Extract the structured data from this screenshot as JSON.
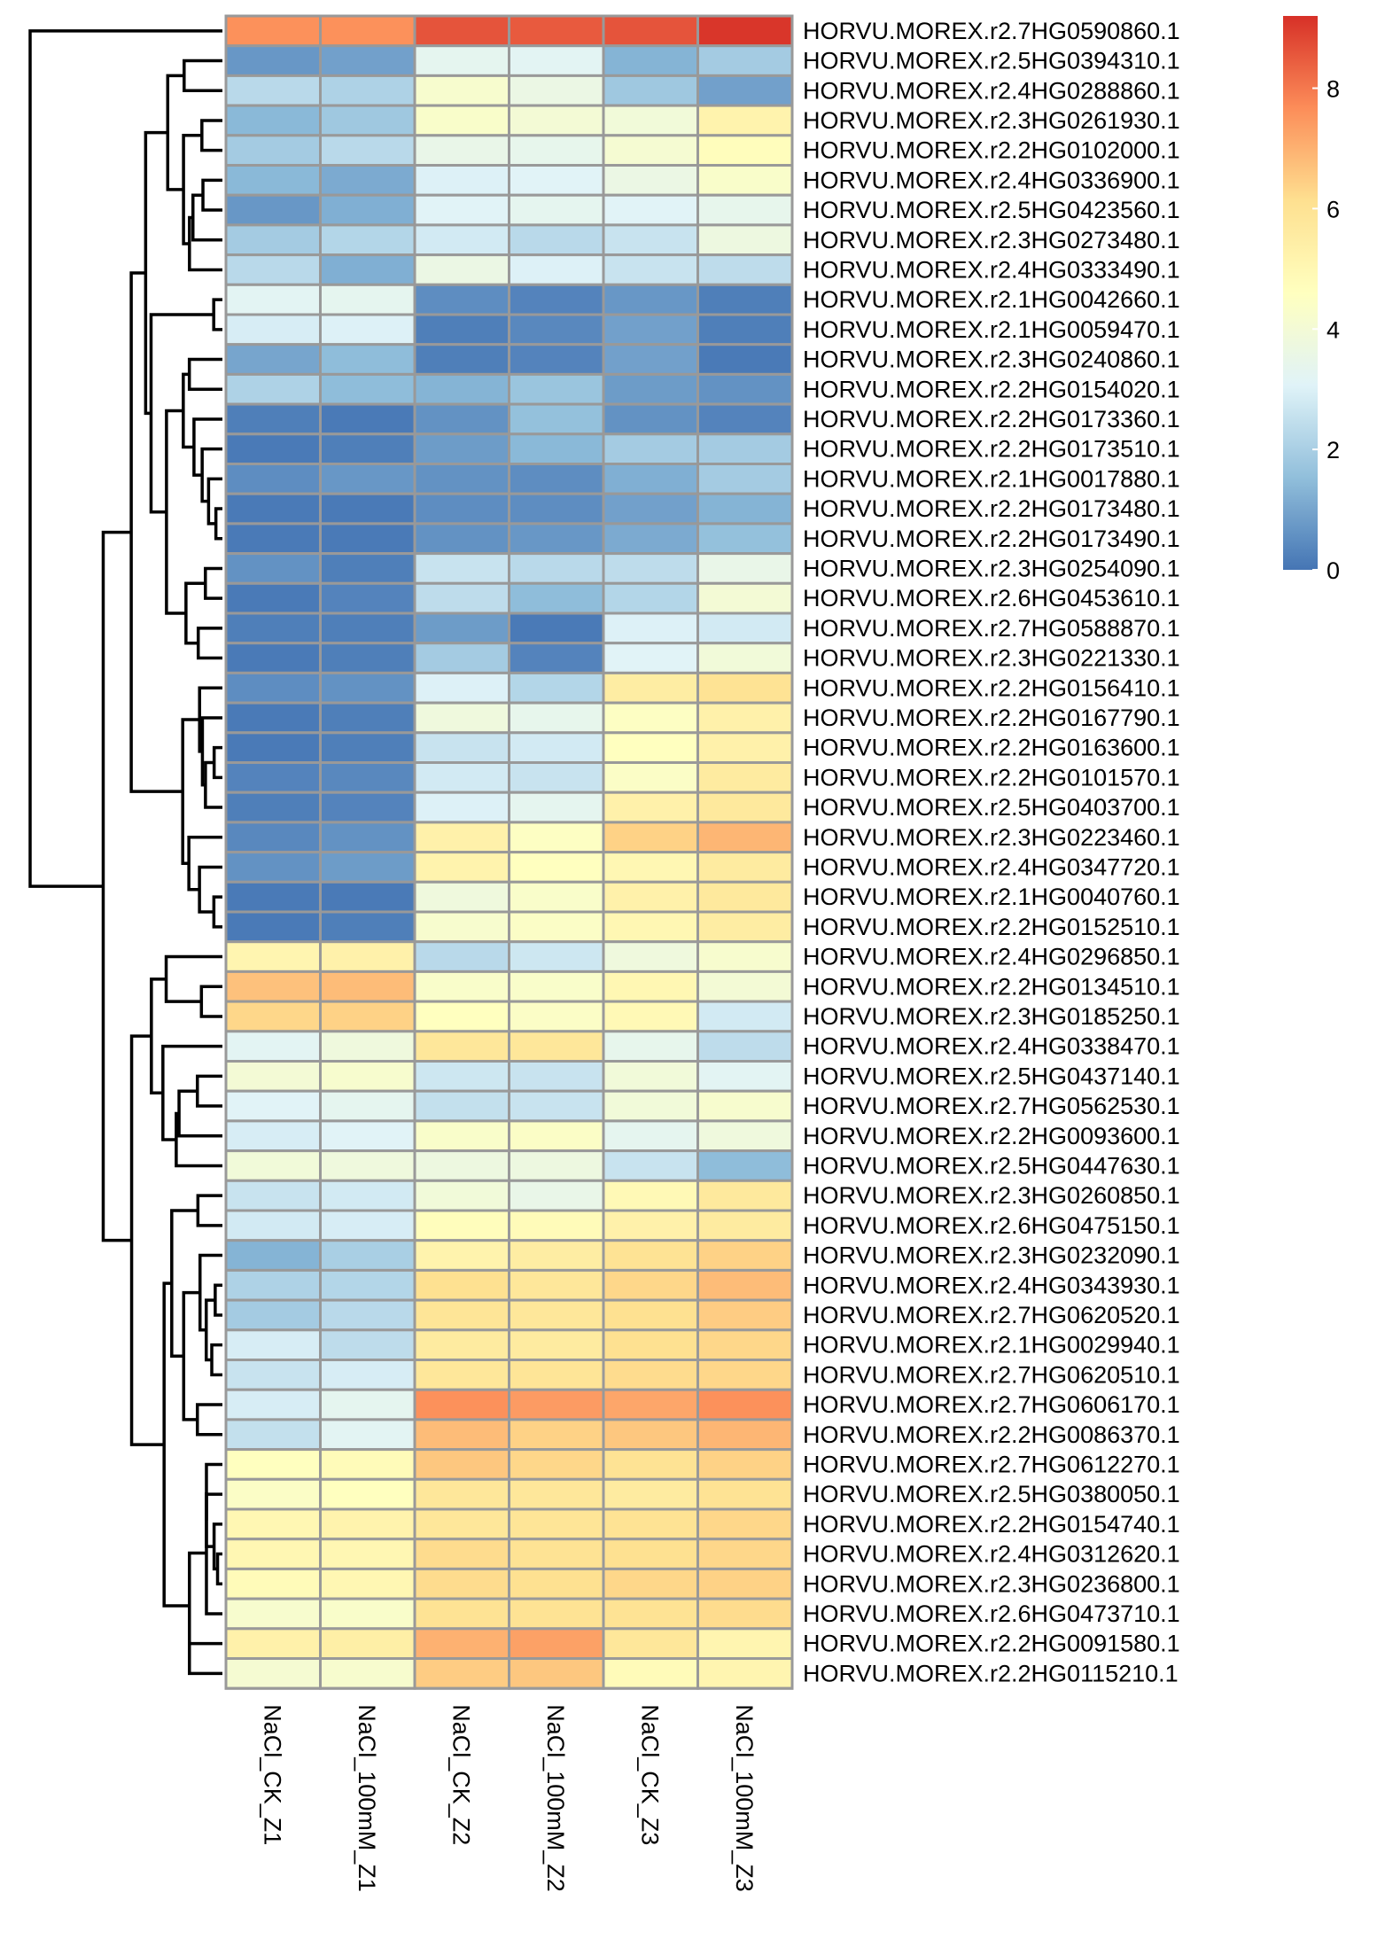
{
  "chart_data": {
    "type": "heatmap",
    "columns": [
      "NaCl_CK_Z1",
      "NaCl_100mM_Z1",
      "NaCl_CK_Z2",
      "NaCl_100mM_Z2",
      "NaCl_CK_Z3",
      "NaCl_100mM_Z3"
    ],
    "rows": [
      "HORVU.MOREX.r2.7HG0590860.1",
      "HORVU.MOREX.r2.5HG0394310.1",
      "HORVU.MOREX.r2.4HG0288860.1",
      "HORVU.MOREX.r2.3HG0261930.1",
      "HORVU.MOREX.r2.2HG0102000.1",
      "HORVU.MOREX.r2.4HG0336900.1",
      "HORVU.MOREX.r2.5HG0423560.1",
      "HORVU.MOREX.r2.3HG0273480.1",
      "HORVU.MOREX.r2.4HG0333490.1",
      "HORVU.MOREX.r2.1HG0042660.1",
      "HORVU.MOREX.r2.1HG0059470.1",
      "HORVU.MOREX.r2.3HG0240860.1",
      "HORVU.MOREX.r2.2HG0154020.1",
      "HORVU.MOREX.r2.2HG0173360.1",
      "HORVU.MOREX.r2.2HG0173510.1",
      "HORVU.MOREX.r2.1HG0017880.1",
      "HORVU.MOREX.r2.2HG0173480.1",
      "HORVU.MOREX.r2.2HG0173490.1",
      "HORVU.MOREX.r2.3HG0254090.1",
      "HORVU.MOREX.r2.6HG0453610.1",
      "HORVU.MOREX.r2.7HG0588870.1",
      "HORVU.MOREX.r2.3HG0221330.1",
      "HORVU.MOREX.r2.2HG0156410.1",
      "HORVU.MOREX.r2.2HG0167790.1",
      "HORVU.MOREX.r2.2HG0163600.1",
      "HORVU.MOREX.r2.2HG0101570.1",
      "HORVU.MOREX.r2.5HG0403700.1",
      "HORVU.MOREX.r2.3HG0223460.1",
      "HORVU.MOREX.r2.4HG0347720.1",
      "HORVU.MOREX.r2.1HG0040760.1",
      "HORVU.MOREX.r2.2HG0152510.1",
      "HORVU.MOREX.r2.4HG0296850.1",
      "HORVU.MOREX.r2.2HG0134510.1",
      "HORVU.MOREX.r2.3HG0185250.1",
      "HORVU.MOREX.r2.4HG0338470.1",
      "HORVU.MOREX.r2.5HG0437140.1",
      "HORVU.MOREX.r2.7HG0562530.1",
      "HORVU.MOREX.r2.2HG0093600.1",
      "HORVU.MOREX.r2.5HG0447630.1",
      "HORVU.MOREX.r2.3HG0260850.1",
      "HORVU.MOREX.r2.6HG0475150.1",
      "HORVU.MOREX.r2.3HG0232090.1",
      "HORVU.MOREX.r2.4HG0343930.1",
      "HORVU.MOREX.r2.7HG0620520.1",
      "HORVU.MOREX.r2.1HG0029940.1",
      "HORVU.MOREX.r2.7HG0620510.1",
      "HORVU.MOREX.r2.7HG0606170.1",
      "HORVU.MOREX.r2.2HG0086370.1",
      "HORVU.MOREX.r2.7HG0612270.1",
      "HORVU.MOREX.r2.5HG0380050.1",
      "HORVU.MOREX.r2.2HG0154740.1",
      "HORVU.MOREX.r2.4HG0312620.1",
      "HORVU.MOREX.r2.3HG0236800.1",
      "HORVU.MOREX.r2.6HG0473710.1",
      "HORVU.MOREX.r2.2HG0091580.1",
      "HORVU.MOREX.r2.2HG0115210.1"
    ],
    "values": [
      [
        7.6,
        7.6,
        8.6,
        8.5,
        8.6,
        9.1
      ],
      [
        0.7,
        0.9,
        3.3,
        3.2,
        1.3,
        1.9
      ],
      [
        2.3,
        2.1,
        4.2,
        3.6,
        1.8,
        0.9
      ],
      [
        1.4,
        1.8,
        4.3,
        4.0,
        3.9,
        5.2
      ],
      [
        1.9,
        2.3,
        3.5,
        3.4,
        4.1,
        4.7
      ],
      [
        1.4,
        1.1,
        3.0,
        3.1,
        3.6,
        4.3
      ],
      [
        0.7,
        1.2,
        3.1,
        3.3,
        3.1,
        3.4
      ],
      [
        1.9,
        2.2,
        2.8,
        2.3,
        2.6,
        3.7
      ],
      [
        2.3,
        1.2,
        3.6,
        3.0,
        2.6,
        2.4
      ],
      [
        3.2,
        3.3,
        0.5,
        0.3,
        0.7,
        0.2
      ],
      [
        2.9,
        3.0,
        0.2,
        0.4,
        0.9,
        0.2
      ],
      [
        1.0,
        1.5,
        0.2,
        0.3,
        0.9,
        0.1
      ],
      [
        2.1,
        1.5,
        1.3,
        1.7,
        0.8,
        0.6
      ],
      [
        0.2,
        0.1,
        0.6,
        1.6,
        0.6,
        0.3
      ],
      [
        0.1,
        0.2,
        0.8,
        1.4,
        1.9,
        1.9
      ],
      [
        0.5,
        0.7,
        0.6,
        0.5,
        1.2,
        1.9
      ],
      [
        0.1,
        0.1,
        0.5,
        0.5,
        0.9,
        1.3
      ],
      [
        0.1,
        0.1,
        0.6,
        0.7,
        1.1,
        1.6
      ],
      [
        0.6,
        0.2,
        2.6,
        2.3,
        2.4,
        3.5
      ],
      [
        0.1,
        0.3,
        2.4,
        1.5,
        2.2,
        4.0
      ],
      [
        0.2,
        0.2,
        0.8,
        0.1,
        3.0,
        2.8
      ],
      [
        0.1,
        0.2,
        1.9,
        0.3,
        3.1,
        3.9
      ],
      [
        0.5,
        0.6,
        3.0,
        2.2,
        5.5,
        6.0
      ],
      [
        0.1,
        0.2,
        3.8,
        3.4,
        4.5,
        5.3
      ],
      [
        0.1,
        0.2,
        2.6,
        2.8,
        4.6,
        5.3
      ],
      [
        0.3,
        0.4,
        2.8,
        2.6,
        4.4,
        5.6
      ],
      [
        0.2,
        0.3,
        3.0,
        3.3,
        5.3,
        5.7
      ],
      [
        0.4,
        0.6,
        5.3,
        4.5,
        6.4,
        6.9
      ],
      [
        0.6,
        0.8,
        5.2,
        4.6,
        5.0,
        5.6
      ],
      [
        0.1,
        0.1,
        3.8,
        4.3,
        5.3,
        5.7
      ],
      [
        0.1,
        0.2,
        4.2,
        4.4,
        5.0,
        5.5
      ],
      [
        5.1,
        5.3,
        2.3,
        2.7,
        3.8,
        4.2
      ],
      [
        6.7,
        6.8,
        4.3,
        4.3,
        5.0,
        4.0
      ],
      [
        6.3,
        6.4,
        4.6,
        4.4,
        4.9,
        2.8
      ],
      [
        3.2,
        3.8,
        5.8,
        5.8,
        3.4,
        2.4
      ],
      [
        4.0,
        4.2,
        2.7,
        2.6,
        3.9,
        3.2
      ],
      [
        3.1,
        3.3,
        2.5,
        2.6,
        3.9,
        4.2
      ],
      [
        2.9,
        3.1,
        4.3,
        4.4,
        3.3,
        3.8
      ],
      [
        3.9,
        3.8,
        3.7,
        3.7,
        2.6,
        1.5
      ],
      [
        2.6,
        2.8,
        3.9,
        3.5,
        4.9,
        5.7
      ],
      [
        2.8,
        2.9,
        4.7,
        4.8,
        5.3,
        5.6
      ],
      [
        1.3,
        2.0,
        5.2,
        5.5,
        6.0,
        6.4
      ],
      [
        2.1,
        2.2,
        6.1,
        5.8,
        6.3,
        6.8
      ],
      [
        1.9,
        2.3,
        5.9,
        5.8,
        6.1,
        6.5
      ],
      [
        2.9,
        2.4,
        5.6,
        5.6,
        6.1,
        6.3
      ],
      [
        2.6,
        2.9,
        5.8,
        5.9,
        6.2,
        6.3
      ],
      [
        2.9,
        3.3,
        7.6,
        7.4,
        7.2,
        7.6
      ],
      [
        2.5,
        3.2,
        6.8,
        6.4,
        6.6,
        6.9
      ],
      [
        4.6,
        4.8,
        6.6,
        6.3,
        6.0,
        6.4
      ],
      [
        4.4,
        4.6,
        5.8,
        5.8,
        5.6,
        6.0
      ],
      [
        5.0,
        5.2,
        5.8,
        5.9,
        6.0,
        6.3
      ],
      [
        5.0,
        5.0,
        6.2,
        6.0,
        6.1,
        6.3
      ],
      [
        4.8,
        5.0,
        6.2,
        6.1,
        6.3,
        6.4
      ],
      [
        4.2,
        4.3,
        6.0,
        6.0,
        6.0,
        6.2
      ],
      [
        5.3,
        5.4,
        7.0,
        7.3,
        5.8,
        5.1
      ],
      [
        4.1,
        4.2,
        6.5,
        6.6,
        4.8,
        5.1
      ]
    ],
    "scale": {
      "min": 0,
      "max": 9.2,
      "ticks": [
        0,
        2,
        4,
        6,
        8
      ]
    },
    "palette": [
      "#4575B4",
      "#91BFDB",
      "#E0F3F8",
      "#FFFFBF",
      "#FEE090",
      "#FC8D59",
      "#D73027"
    ],
    "row_dendrogram": true,
    "legend_position": "top-right"
  }
}
